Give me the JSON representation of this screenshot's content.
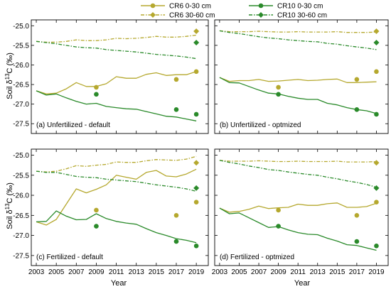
{
  "legend": {
    "position": "top",
    "entries": [
      {
        "name": "CR6 0-30 cm",
        "color": "#b5a82e",
        "style": "solid",
        "marker": "circle"
      },
      {
        "name": "CR6 30-60 cm",
        "color": "#b5a82e",
        "style": "dashdot",
        "marker": "diamond"
      },
      {
        "name": "CR10 0-30 cm",
        "color": "#2a8a2a",
        "style": "solid",
        "marker": "circle"
      },
      {
        "name": "CR10 30-60 cm",
        "color": "#2a8a2a",
        "style": "dashdot",
        "marker": "diamond"
      }
    ]
  },
  "axes": {
    "xlabel": "Year",
    "ylabel_prefix": "Soil δ",
    "ylabel_sup": "13",
    "ylabel_suffix": "C (‰)",
    "xlim": [
      2002.5,
      2020.2
    ],
    "ylim": [
      -27.75,
      -24.85
    ],
    "xticks": [
      "2003",
      "2005",
      "2007",
      "2009",
      "2011",
      "2013",
      "2015",
      "2017",
      "2019"
    ],
    "yticks": [
      "-25.0",
      "-25.5",
      "-26.0",
      "-26.5",
      "-27.0",
      "-27.5"
    ],
    "ytick_values": [
      -25.0,
      -25.5,
      -26.0,
      -26.5,
      -27.0,
      -27.5
    ],
    "xtick_values": [
      2003,
      2005,
      2007,
      2009,
      2011,
      2013,
      2015,
      2017,
      2019
    ]
  },
  "chart_data": [
    {
      "type": "line",
      "title": "(a) Unfertilized - default",
      "x": [
        2003,
        2004,
        2005,
        2006,
        2007,
        2008,
        2009,
        2010,
        2011,
        2012,
        2013,
        2014,
        2015,
        2016,
        2017,
        2018,
        2019
      ],
      "series": [
        {
          "name": "CR6 0-30 cm",
          "values": [
            -26.66,
            -26.74,
            -26.72,
            -26.61,
            -26.45,
            -26.55,
            -26.55,
            -26.48,
            -26.3,
            -26.34,
            -26.34,
            -26.24,
            -26.2,
            -26.27,
            -26.25,
            -26.25,
            -26.17
          ]
        },
        {
          "name": "CR6 30-60 cm",
          "values": [
            -25.4,
            -25.42,
            -25.42,
            -25.4,
            -25.36,
            -25.38,
            -25.38,
            -25.36,
            -25.32,
            -25.33,
            -25.32,
            -25.3,
            -25.27,
            -25.29,
            -25.29,
            -25.27,
            -25.24
          ]
        },
        {
          "name": "CR10 0-30 cm",
          "values": [
            -26.66,
            -26.77,
            -26.74,
            -26.84,
            -26.93,
            -27.0,
            -26.98,
            -27.06,
            -27.09,
            -27.12,
            -27.13,
            -27.19,
            -27.25,
            -27.31,
            -27.33,
            -27.38,
            -27.43
          ]
        },
        {
          "name": "CR10 30-60 cm",
          "values": [
            -25.4,
            -25.43,
            -25.46,
            -25.5,
            -25.54,
            -25.56,
            -25.57,
            -25.61,
            -25.63,
            -25.65,
            -25.67,
            -25.7,
            -25.73,
            -25.75,
            -25.77,
            -25.8,
            -25.84
          ]
        }
      ],
      "observed": [
        {
          "name": "CR6 0-30 cm",
          "x": [
            2009,
            2017,
            2019
          ],
          "values": [
            -26.57,
            -26.37,
            -26.17
          ]
        },
        {
          "name": "CR6 30-60 cm",
          "x": [
            2019
          ],
          "values": [
            -25.14
          ]
        },
        {
          "name": "CR10 0-30 cm",
          "x": [
            2009,
            2017,
            2019
          ],
          "values": [
            -26.75,
            -27.14,
            -27.26
          ]
        },
        {
          "name": "CR10 30-60 cm",
          "x": [
            2019
          ],
          "values": [
            -25.43
          ]
        }
      ]
    },
    {
      "type": "line",
      "title": "(b) Unfertilized - optmized",
      "x": [
        2003,
        2004,
        2005,
        2006,
        2007,
        2008,
        2009,
        2010,
        2011,
        2012,
        2013,
        2014,
        2015,
        2016,
        2017,
        2018,
        2019
      ],
      "series": [
        {
          "name": "CR6 0-30 cm",
          "values": [
            -26.32,
            -26.42,
            -26.4,
            -26.4,
            -26.37,
            -26.42,
            -26.41,
            -26.39,
            -26.37,
            -26.4,
            -26.39,
            -26.37,
            -26.36,
            -26.45,
            -26.45,
            -26.44,
            -26.43
          ]
        },
        {
          "name": "CR6 30-60 cm",
          "values": [
            -25.13,
            -25.15,
            -25.15,
            -25.15,
            -25.14,
            -25.15,
            -25.16,
            -25.16,
            -25.15,
            -25.16,
            -25.16,
            -25.16,
            -25.15,
            -25.17,
            -25.17,
            -25.17,
            -25.16
          ]
        },
        {
          "name": "CR10 0-30 cm",
          "values": [
            -26.32,
            -26.45,
            -26.46,
            -26.55,
            -26.64,
            -26.72,
            -26.74,
            -26.8,
            -26.85,
            -26.88,
            -26.88,
            -26.98,
            -27.02,
            -27.09,
            -27.14,
            -27.17,
            -27.24
          ]
        },
        {
          "name": "CR10 30-60 cm",
          "values": [
            -25.13,
            -25.17,
            -25.2,
            -25.24,
            -25.28,
            -25.31,
            -25.33,
            -25.36,
            -25.38,
            -25.4,
            -25.41,
            -25.45,
            -25.47,
            -25.51,
            -25.54,
            -25.57,
            -25.61
          ]
        }
      ],
      "observed": [
        {
          "name": "CR6 0-30 cm",
          "x": [
            2009,
            2017,
            2019
          ],
          "values": [
            -26.57,
            -26.37,
            -26.17
          ]
        },
        {
          "name": "CR6 30-60 cm",
          "x": [
            2019
          ],
          "values": [
            -25.14
          ]
        },
        {
          "name": "CR10 0-30 cm",
          "x": [
            2009,
            2017,
            2019
          ],
          "values": [
            -26.75,
            -27.14,
            -27.26
          ]
        },
        {
          "name": "CR10 30-60 cm",
          "x": [
            2019
          ],
          "values": [
            -25.43
          ]
        }
      ]
    },
    {
      "type": "line",
      "title": "(c) Fertilized - default",
      "x": [
        2003,
        2004,
        2005,
        2006,
        2007,
        2008,
        2009,
        2010,
        2011,
        2012,
        2013,
        2014,
        2015,
        2016,
        2017,
        2018,
        2019
      ],
      "series": [
        {
          "name": "CR6 0-30 cm",
          "values": [
            -26.66,
            -26.74,
            -26.6,
            -26.22,
            -25.84,
            -25.94,
            -25.85,
            -25.74,
            -25.5,
            -25.55,
            -25.6,
            -25.43,
            -25.38,
            -25.52,
            -25.54,
            -25.47,
            -25.35
          ]
        },
        {
          "name": "CR6 30-60 cm",
          "values": [
            -25.4,
            -25.42,
            -25.4,
            -25.34,
            -25.26,
            -25.28,
            -25.25,
            -25.23,
            -25.17,
            -25.18,
            -25.18,
            -25.14,
            -25.11,
            -25.12,
            -25.13,
            -25.1,
            -25.03
          ]
        },
        {
          "name": "CR10 0-30 cm",
          "values": [
            -26.66,
            -26.65,
            -26.39,
            -26.52,
            -26.61,
            -26.6,
            -26.46,
            -26.58,
            -26.65,
            -26.69,
            -26.72,
            -26.83,
            -26.93,
            -27.0,
            -27.08,
            -27.12,
            -27.18
          ]
        },
        {
          "name": "CR10 30-60 cm",
          "values": [
            -25.4,
            -25.43,
            -25.43,
            -25.48,
            -25.53,
            -25.55,
            -25.56,
            -25.6,
            -25.62,
            -25.64,
            -25.66,
            -25.7,
            -25.74,
            -25.77,
            -25.8,
            -25.84,
            -25.9
          ]
        }
      ],
      "observed": [
        {
          "name": "CR6 0-30 cm",
          "x": [
            2009,
            2017,
            2019
          ],
          "values": [
            -26.37,
            -26.5,
            -26.17
          ]
        },
        {
          "name": "CR6 30-60 cm",
          "x": [
            2019
          ],
          "values": [
            -25.19
          ]
        },
        {
          "name": "CR10 0-30 cm",
          "x": [
            2009,
            2017,
            2019
          ],
          "values": [
            -26.77,
            -27.15,
            -27.26
          ]
        },
        {
          "name": "CR10 30-60 cm",
          "x": [
            2019
          ],
          "values": [
            -25.82
          ]
        }
      ]
    },
    {
      "type": "line",
      "title": "(d) Fertilized - optmized",
      "x": [
        2003,
        2004,
        2005,
        2006,
        2007,
        2008,
        2009,
        2010,
        2011,
        2012,
        2013,
        2014,
        2015,
        2016,
        2017,
        2018,
        2019
      ],
      "series": [
        {
          "name": "CR6 0-30 cm",
          "values": [
            -26.32,
            -26.42,
            -26.4,
            -26.35,
            -26.27,
            -26.33,
            -26.31,
            -26.3,
            -26.22,
            -26.25,
            -26.25,
            -26.21,
            -26.19,
            -26.3,
            -26.3,
            -26.28,
            -26.2
          ]
        },
        {
          "name": "CR6 30-60 cm",
          "values": [
            -25.13,
            -25.15,
            -25.15,
            -25.15,
            -25.14,
            -25.15,
            -25.16,
            -25.16,
            -25.15,
            -25.16,
            -25.16,
            -25.16,
            -25.15,
            -25.17,
            -25.17,
            -25.17,
            -25.16
          ]
        },
        {
          "name": "CR10 0-30 cm",
          "values": [
            -26.32,
            -26.46,
            -26.44,
            -26.56,
            -26.68,
            -26.8,
            -26.78,
            -26.86,
            -26.93,
            -26.97,
            -26.98,
            -27.07,
            -27.14,
            -27.23,
            -27.25,
            -27.31,
            -27.37
          ]
        },
        {
          "name": "CR10 30-60 cm",
          "values": [
            -25.13,
            -25.18,
            -25.22,
            -25.27,
            -25.31,
            -25.36,
            -25.38,
            -25.42,
            -25.45,
            -25.48,
            -25.5,
            -25.55,
            -25.59,
            -25.64,
            -25.68,
            -25.73,
            -25.8
          ]
        }
      ],
      "observed": [
        {
          "name": "CR6 0-30 cm",
          "x": [
            2009,
            2017,
            2019
          ],
          "values": [
            -26.37,
            -26.5,
            -26.17
          ]
        },
        {
          "name": "CR6 30-60 cm",
          "x": [
            2019
          ],
          "values": [
            -25.19
          ]
        },
        {
          "name": "CR10 0-30 cm",
          "x": [
            2009,
            2017,
            2019
          ],
          "values": [
            -26.77,
            -27.15,
            -27.26
          ]
        },
        {
          "name": "CR10 30-60 cm",
          "x": [
            2019
          ],
          "values": [
            -25.82
          ]
        }
      ]
    }
  ]
}
